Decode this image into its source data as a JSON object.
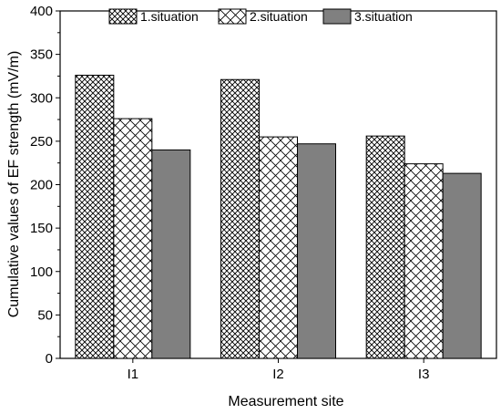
{
  "chart_data": {
    "type": "bar",
    "xlabel": "Measurement site",
    "ylabel": "Cumulative values of EF strength (mV/m)",
    "categories": [
      "I1",
      "I2",
      "I3"
    ],
    "ylim": [
      0,
      400
    ],
    "yticks": [
      0,
      50,
      100,
      150,
      200,
      250,
      300,
      350,
      400
    ],
    "series": [
      {
        "name": "1.situation",
        "values": [
          326,
          321,
          256
        ],
        "fill": "crosshatch-dense"
      },
      {
        "name": "2.situation",
        "values": [
          276,
          255,
          224
        ],
        "fill": "crosshatch-open"
      },
      {
        "name": "3.situation",
        "values": [
          240,
          247,
          213
        ],
        "fill": "solid",
        "color": "#808080"
      }
    ],
    "legend_position": "top",
    "grid": false
  }
}
